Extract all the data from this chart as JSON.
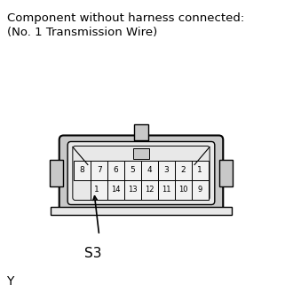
{
  "title_line1": "Component without harness connected:",
  "title_line2": "(No. 1 Transmission Wire)",
  "title_fontsize": 9.5,
  "bg_color": "#ffffff",
  "top_row_labels": [
    "8",
    "7",
    "6",
    "5",
    "4",
    "3",
    "2",
    "1"
  ],
  "bottom_row_labels": [
    "1",
    "14",
    "13",
    "12",
    "11",
    "10",
    "9"
  ],
  "s3_label": "S3",
  "y_label": "Y",
  "line_color": "#000000",
  "gray_dark": "#b0b0b0",
  "gray_mid": "#c8c8c8",
  "gray_light": "#e8e8e8",
  "pin_fill": "#f2f2f2"
}
